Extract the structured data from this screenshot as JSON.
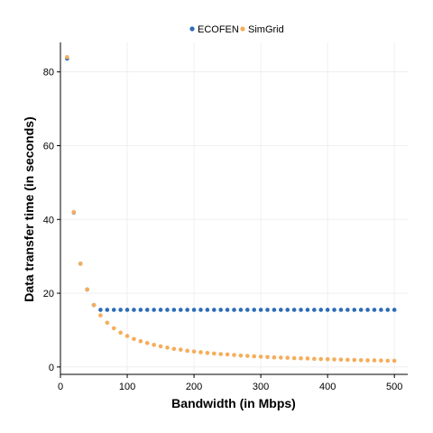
{
  "chart_data": {
    "type": "scatter",
    "xlabel": "Bandwidth (in Mbps)",
    "ylabel": "Data transfer time (in seconds)",
    "xlim": [
      0,
      520
    ],
    "ylim": [
      -2,
      88
    ],
    "x_ticks": [
      0,
      100,
      200,
      300,
      400,
      500
    ],
    "y_ticks": [
      0,
      20,
      40,
      60,
      80
    ],
    "grid": true,
    "legend_position": "top",
    "series": [
      {
        "name": "ECOFEN",
        "color": "#2b6cb8",
        "points": [
          [
            10,
            83.6
          ],
          [
            20,
            41.9
          ],
          [
            30,
            28.0
          ],
          [
            40,
            21.0
          ],
          [
            50,
            16.8
          ],
          [
            60,
            15.5
          ],
          [
            70,
            15.5
          ],
          [
            80,
            15.5
          ],
          [
            90,
            15.5
          ],
          [
            100,
            15.5
          ],
          [
            110,
            15.5
          ],
          [
            120,
            15.5
          ],
          [
            130,
            15.5
          ],
          [
            140,
            15.5
          ],
          [
            150,
            15.5
          ],
          [
            160,
            15.5
          ],
          [
            170,
            15.5
          ],
          [
            180,
            15.5
          ],
          [
            190,
            15.5
          ],
          [
            200,
            15.5
          ],
          [
            210,
            15.5
          ],
          [
            220,
            15.5
          ],
          [
            230,
            15.5
          ],
          [
            240,
            15.5
          ],
          [
            250,
            15.5
          ],
          [
            260,
            15.5
          ],
          [
            270,
            15.5
          ],
          [
            280,
            15.5
          ],
          [
            290,
            15.5
          ],
          [
            300,
            15.5
          ],
          [
            310,
            15.5
          ],
          [
            320,
            15.5
          ],
          [
            330,
            15.5
          ],
          [
            340,
            15.5
          ],
          [
            350,
            15.5
          ],
          [
            360,
            15.5
          ],
          [
            370,
            15.5
          ],
          [
            380,
            15.5
          ],
          [
            390,
            15.5
          ],
          [
            400,
            15.5
          ],
          [
            410,
            15.5
          ],
          [
            420,
            15.5
          ],
          [
            430,
            15.5
          ],
          [
            440,
            15.5
          ],
          [
            450,
            15.5
          ],
          [
            460,
            15.5
          ],
          [
            470,
            15.5
          ],
          [
            480,
            15.5
          ],
          [
            490,
            15.5
          ],
          [
            500,
            15.5
          ]
        ]
      },
      {
        "name": "SimGrid",
        "color": "#f5ad5a",
        "points": [
          [
            10,
            84.0
          ],
          [
            20,
            42.0
          ],
          [
            30,
            28.0
          ],
          [
            40,
            21.0
          ],
          [
            50,
            16.8
          ],
          [
            60,
            14.0
          ],
          [
            70,
            12.0
          ],
          [
            80,
            10.5
          ],
          [
            90,
            9.3
          ],
          [
            100,
            8.4
          ],
          [
            110,
            7.6
          ],
          [
            120,
            7.0
          ],
          [
            130,
            6.5
          ],
          [
            140,
            6.0
          ],
          [
            150,
            5.6
          ],
          [
            160,
            5.25
          ],
          [
            170,
            4.9
          ],
          [
            180,
            4.7
          ],
          [
            190,
            4.4
          ],
          [
            200,
            4.2
          ],
          [
            210,
            4.0
          ],
          [
            220,
            3.8
          ],
          [
            230,
            3.65
          ],
          [
            240,
            3.5
          ],
          [
            250,
            3.4
          ],
          [
            260,
            3.25
          ],
          [
            270,
            3.1
          ],
          [
            280,
            3.0
          ],
          [
            290,
            2.9
          ],
          [
            300,
            2.8
          ],
          [
            310,
            2.7
          ],
          [
            320,
            2.6
          ],
          [
            330,
            2.55
          ],
          [
            340,
            2.5
          ],
          [
            350,
            2.4
          ],
          [
            360,
            2.35
          ],
          [
            370,
            2.3
          ],
          [
            380,
            2.2
          ],
          [
            390,
            2.15
          ],
          [
            400,
            2.1
          ],
          [
            410,
            2.05
          ],
          [
            420,
            2.0
          ],
          [
            430,
            1.95
          ],
          [
            440,
            1.9
          ],
          [
            450,
            1.85
          ],
          [
            460,
            1.8
          ],
          [
            470,
            1.8
          ],
          [
            480,
            1.75
          ],
          [
            490,
            1.7
          ],
          [
            500,
            1.7
          ]
        ]
      }
    ]
  }
}
